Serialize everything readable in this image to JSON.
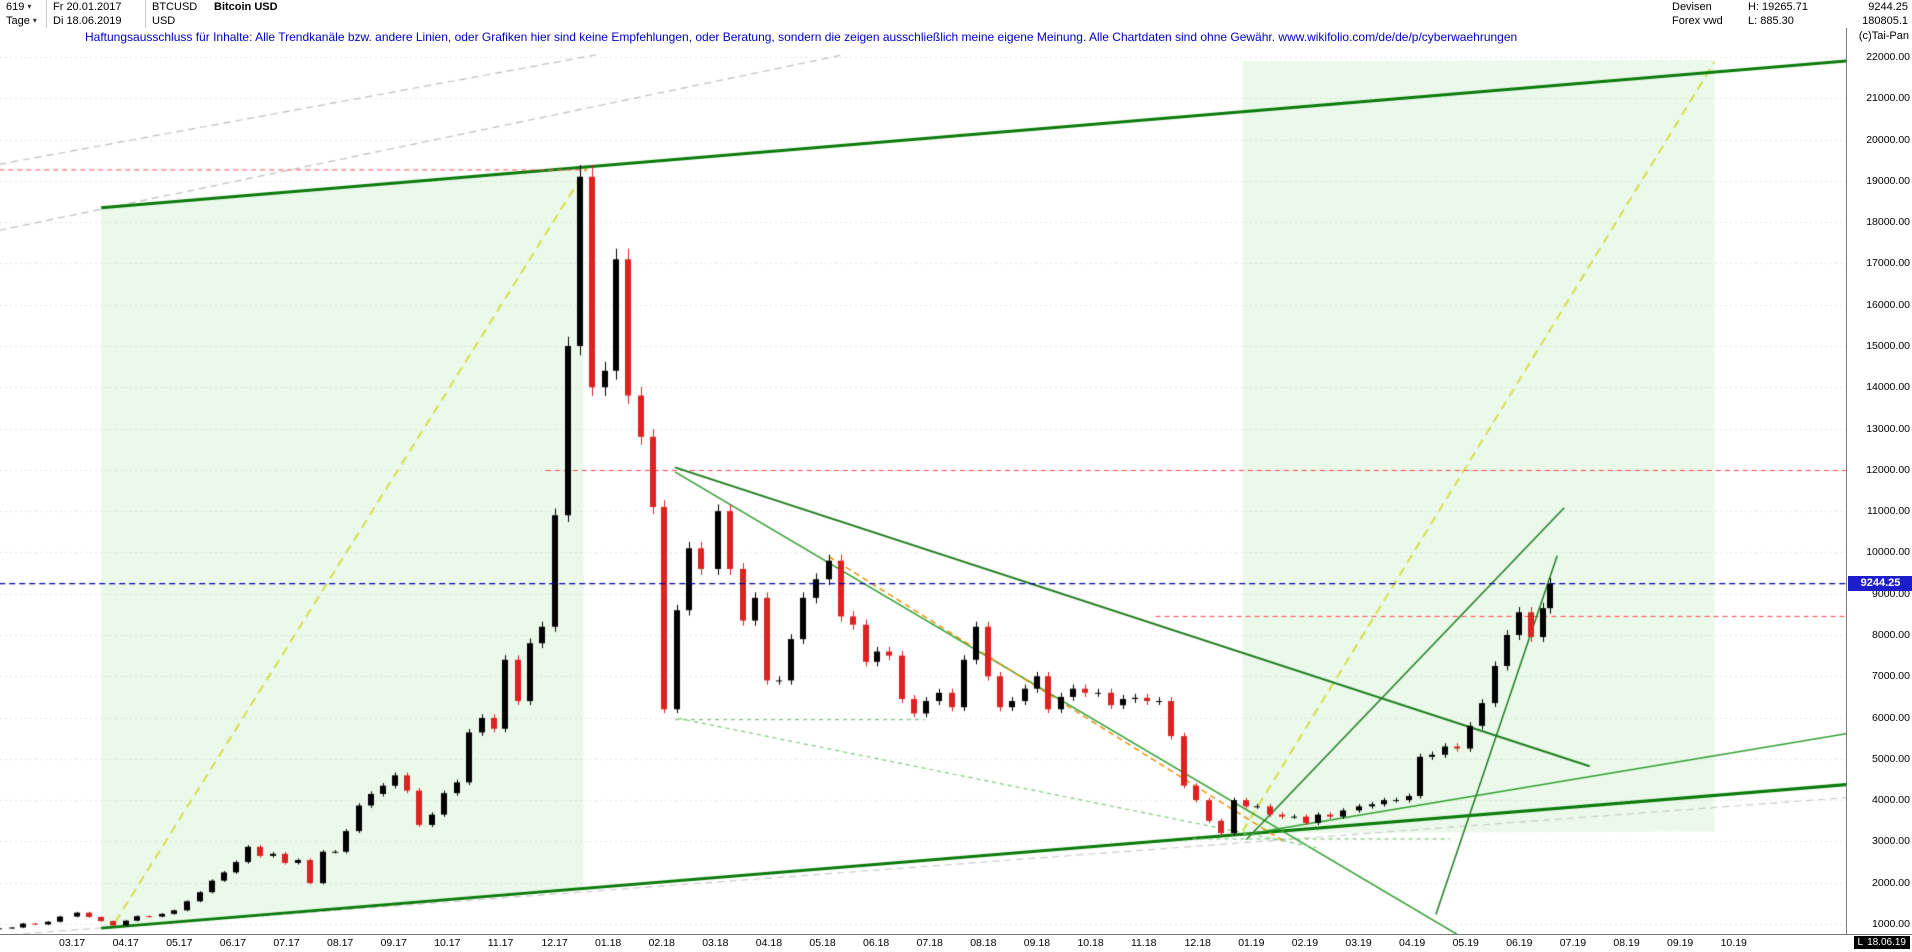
{
  "header": {
    "bars_count": "619",
    "start_date": "Fr 20.01.2017",
    "symbol": "BTCUSD",
    "currency": "USD",
    "instrument": "Bitcoin USD",
    "period": "Tage",
    "end_date": "Di 18.06.2019",
    "category": "Devisen",
    "feed": "Forex vwd",
    "high_label": "H: 19265.71",
    "low_label": "L: 885.30",
    "last_price": "9244.25",
    "volume": "180805.1",
    "copyright": "(c)Tai-Pan"
  },
  "disclaimer": "Haftungsausschluss für Inhalte: Alle Trendkanäle bzw. andere Linien, oder Grafiken hier sind keine Empfehlungen, oder Beratung, sondern die zeigen ausschließlich meine eigene Meinung. Alle Chartdaten sind ohne Gewähr.  www.wikifolio.com/de/de/p/cyberwaehrungen",
  "footer": {
    "low_marker": "L",
    "date_stamp": "18.06.19"
  },
  "price_badge": {
    "text": "9244.25",
    "color": "#1d1dcc"
  },
  "chart_data": {
    "type": "candlestick",
    "title": "Bitcoin USD (BTCUSD), Tage, 20.01.2017 - 18.06.2019",
    "last": 9244.25,
    "high": 19265.71,
    "low": 885.3,
    "ylim": [
      1000,
      22000
    ],
    "axis_min": 1000,
    "axis_max": 22000,
    "grid": {
      "step": 1000,
      "color": "#e8e8e8",
      "dash": [
        2,
        3
      ]
    },
    "colors": {
      "up": "#000000",
      "down": "#dd2222"
    },
    "y_ticks": {
      "values": [
        22000,
        21000,
        20000,
        19000,
        18000,
        17000,
        16000,
        15000,
        14000,
        13000,
        12000,
        11000,
        10000,
        9000,
        8000,
        7000,
        6000,
        5000,
        4000,
        3000,
        2000,
        1000
      ],
      "labels": [
        "22000.00",
        "21000.00",
        "20000.00",
        "19000.00",
        "18000.00",
        "17000.00",
        "16000.00",
        "15000.00",
        "14000.00",
        "13000.00",
        "12000.00",
        "11000.00",
        "10000.00",
        "9000.00",
        "8000.00",
        "7000.00",
        "6000.00",
        "5000.00",
        "4000.00",
        "3000.00",
        "2000.00",
        "1000.00"
      ]
    },
    "x_tick_labels": [
      "03.17",
      "04.17",
      "05.17",
      "06.17",
      "07.17",
      "08.17",
      "09.17",
      "10.17",
      "11.17",
      "12.17",
      "01.18",
      "02.18",
      "03.18",
      "04.18",
      "05.18",
      "06.18",
      "07.18",
      "08.18",
      "09.18",
      "10.18",
      "11.18",
      "12.18",
      "01.19",
      "02.19",
      "03.19",
      "04.19",
      "05.19",
      "06.19",
      "07.19",
      "08.19",
      "09.19",
      "10.19"
    ],
    "candles": {
      "dates": [
        "2017-01-20",
        "2017-01-27",
        "2017-02-03",
        "2017-02-10",
        "2017-02-17",
        "2017-02-24",
        "2017-03-03",
        "2017-03-10",
        "2017-03-17",
        "2017-03-24",
        "2017-03-31",
        "2017-04-07",
        "2017-04-14",
        "2017-04-21",
        "2017-04-28",
        "2017-05-05",
        "2017-05-12",
        "2017-05-19",
        "2017-05-26",
        "2017-06-02",
        "2017-06-09",
        "2017-06-16",
        "2017-06-23",
        "2017-06-30",
        "2017-07-07",
        "2017-07-14",
        "2017-07-21",
        "2017-07-28",
        "2017-08-04",
        "2017-08-11",
        "2017-08-18",
        "2017-08-25",
        "2017-09-01",
        "2017-09-08",
        "2017-09-15",
        "2017-09-22",
        "2017-09-29",
        "2017-10-06",
        "2017-10-13",
        "2017-10-20",
        "2017-10-27",
        "2017-11-03",
        "2017-11-10",
        "2017-11-17",
        "2017-11-24",
        "2017-12-01",
        "2017-12-08",
        "2017-12-15",
        "2017-12-22",
        "2017-12-29",
        "2018-01-05",
        "2018-01-12",
        "2018-01-19",
        "2018-01-26",
        "2018-02-02",
        "2018-02-09",
        "2018-02-16",
        "2018-02-23",
        "2018-03-02",
        "2018-03-09",
        "2018-03-16",
        "2018-03-23",
        "2018-03-30",
        "2018-04-06",
        "2018-04-13",
        "2018-04-20",
        "2018-04-27",
        "2018-05-04",
        "2018-05-11",
        "2018-05-18",
        "2018-05-25",
        "2018-06-01",
        "2018-06-08",
        "2018-06-15",
        "2018-06-22",
        "2018-06-29",
        "2018-07-06",
        "2018-07-13",
        "2018-07-20",
        "2018-07-27",
        "2018-08-03",
        "2018-08-10",
        "2018-08-17",
        "2018-08-24",
        "2018-08-31",
        "2018-09-07",
        "2018-09-14",
        "2018-09-21",
        "2018-09-28",
        "2018-10-05",
        "2018-10-12",
        "2018-10-19",
        "2018-10-26",
        "2018-11-02",
        "2018-11-09",
        "2018-11-16",
        "2018-11-23",
        "2018-11-30",
        "2018-12-07",
        "2018-12-14",
        "2018-12-21",
        "2018-12-28",
        "2019-01-04",
        "2019-01-11",
        "2019-01-18",
        "2019-01-25",
        "2019-02-01",
        "2019-02-08",
        "2019-02-15",
        "2019-02-22",
        "2019-03-01",
        "2019-03-08",
        "2019-03-15",
        "2019-03-22",
        "2019-03-29",
        "2019-04-05",
        "2019-04-12",
        "2019-04-19",
        "2019-04-26",
        "2019-05-03",
        "2019-05-10",
        "2019-05-17",
        "2019-05-24",
        "2019-05-31",
        "2019-06-07",
        "2019-06-14",
        "2019-06-18"
      ],
      "closes": [
        895,
        915,
        1010,
        990,
        1055,
        1180,
        1275,
        1170,
        1070,
        965,
        1080,
        1190,
        1180,
        1245,
        1330,
        1550,
        1770,
        2050,
        2250,
        2500,
        2870,
        2650,
        2700,
        2480,
        2550,
        1990,
        2750,
        2750,
        3250,
        3870,
        4150,
        4350,
        4600,
        4230,
        3400,
        3650,
        4170,
        4430,
        5640,
        5990,
        5730,
        7400,
        6400,
        7800,
        8200,
        10900,
        15000,
        19100,
        14000,
        14400,
        17100,
        13800,
        12800,
        11100,
        6200,
        8600,
        10100,
        9600,
        11000,
        9600,
        8350,
        8900,
        6900,
        6900,
        7900,
        8900,
        9350,
        9800,
        8450,
        8250,
        7350,
        7600,
        7500,
        6450,
        6100,
        6400,
        6600,
        6250,
        7400,
        8200,
        7000,
        6250,
        6400,
        6700,
        7000,
        6200,
        6500,
        6700,
        6600,
        6600,
        6300,
        6450,
        6480,
        6400,
        6400,
        5550,
        4350,
        4000,
        3500,
        3200,
        4000,
        3850,
        3850,
        3650,
        3600,
        3600,
        3450,
        3650,
        3600,
        3750,
        3850,
        3900,
        4000,
        4000,
        4100,
        5050,
        5100,
        5300,
        5250,
        5800,
        6350,
        7250,
        8000,
        8550,
        7950,
        8650,
        9244.25
      ]
    },
    "regions": [
      {
        "name": "green-channel-left",
        "fill": "rgba(150,225,150,0.20)",
        "points": [
          [
            "2017-03-17",
            900
          ],
          [
            "2017-03-17",
            18350
          ],
          [
            "2017-12-17",
            19330
          ],
          [
            "2017-12-17",
            1860
          ]
        ]
      },
      {
        "name": "green-channel-right",
        "fill": "rgba(150,225,150,0.20)",
        "points": [
          [
            "2018-12-26",
            3200
          ],
          [
            "2018-12-26",
            21900
          ],
          [
            "2019-09-20",
            21930
          ],
          [
            "2019-09-20",
            3240
          ]
        ]
      }
    ],
    "overlays": [
      {
        "name": "gray-dashed-upper-1",
        "color": "#bdbdbd",
        "width": 1.2,
        "dash": [
          7,
          5
        ],
        "points": [
          [
            "2017-01-20",
            17800
          ],
          [
            "2018-05-13",
            22060
          ]
        ]
      },
      {
        "name": "gray-dashed-upper-2",
        "color": "#bdbdbd",
        "width": 1.2,
        "dash": [
          7,
          5
        ],
        "points": [
          [
            "2017-01-20",
            19400
          ],
          [
            "2017-12-25",
            22060
          ]
        ]
      },
      {
        "name": "gray-dashed-lower",
        "color": "#cccccc",
        "width": 1.2,
        "dash": [
          7,
          5
        ],
        "points": [
          [
            "2017-01-20",
            720
          ],
          [
            "2019-12-16",
            4100
          ]
        ]
      },
      {
        "name": "yellow-dashed-left",
        "color": "#d4e04a",
        "width": 2,
        "dash": [
          9,
          6
        ],
        "points": [
          [
            "2017-03-25",
            1050
          ],
          [
            "2017-12-19",
            19320
          ]
        ]
      },
      {
        "name": "yellow-dashed-right",
        "color": "#d4e04a",
        "width": 2,
        "dash": [
          9,
          6
        ],
        "points": [
          [
            "2018-12-26",
            3250
          ],
          [
            "2019-09-20",
            21880
          ]
        ]
      },
      {
        "name": "support-trendline-main",
        "color": "#0a7a0a",
        "width": 3,
        "dash": [],
        "points": [
          [
            "2017-03-17",
            900
          ],
          [
            "2019-12-16",
            4420
          ]
        ]
      },
      {
        "name": "resistance-trendline-main",
        "color": "#0a7a0a",
        "width": 3,
        "dash": [],
        "points": [
          [
            "2017-03-17",
            18350
          ],
          [
            "2019-12-16",
            21950
          ]
        ]
      },
      {
        "name": "red-dashed-high-19265",
        "color": "#ff5050",
        "width": 1,
        "dash": [
          5,
          4
        ],
        "points": [
          [
            "2017-01-20",
            19265
          ],
          [
            "2017-12-19",
            19265
          ]
        ]
      },
      {
        "name": "red-dashed-12000",
        "color": "#ff4545",
        "width": 1,
        "dash": [
          5,
          4
        ],
        "points": [
          [
            "2017-11-26",
            11985
          ],
          [
            "2019-12-16",
            11985
          ]
        ]
      },
      {
        "name": "red-dashed-8450",
        "color": "#ff4545",
        "width": 1,
        "dash": [
          5,
          4
        ],
        "points": [
          [
            "2018-11-07",
            8450
          ],
          [
            "2019-12-16",
            8450
          ]
        ]
      },
      {
        "name": "descending-resistance-green",
        "color": "#1e7d1e",
        "width": 2,
        "dash": [],
        "points": [
          [
            "2018-02-08",
            12060
          ],
          [
            "2019-07-10",
            4820
          ]
        ]
      },
      {
        "name": "descending-steep-green",
        "color": "#2f9e2f",
        "width": 1.5,
        "dash": [],
        "points": [
          [
            "2018-02-08",
            11950
          ],
          [
            "2019-04-28",
            700
          ]
        ]
      },
      {
        "name": "orange-dashed-descending",
        "color": "#e8920a",
        "width": 1.5,
        "dash": [
          6,
          4
        ],
        "points": [
          [
            "2018-05-04",
            9900
          ],
          [
            "2019-01-19",
            3000
          ]
        ]
      },
      {
        "name": "lightgreen-dashed-descending",
        "color": "#7cc97c",
        "width": 1.2,
        "dash": [
          4,
          4
        ],
        "points": [
          [
            "2018-02-10",
            5980
          ],
          [
            "2019-02-07",
            2850
          ]
        ]
      },
      {
        "name": "lightgreen-dashed-6000",
        "color": "#7cc97c",
        "width": 1.2,
        "dash": [
          4,
          4
        ],
        "points": [
          [
            "2018-02-08",
            5950
          ],
          [
            "2018-06-28",
            5950
          ]
        ]
      },
      {
        "name": "lightgreen-dashed-3060",
        "color": "#7cc97c",
        "width": 1.2,
        "dash": [
          4,
          4
        ],
        "points": [
          [
            "2018-11-28",
            3060
          ],
          [
            "2019-04-22",
            3060
          ]
        ]
      },
      {
        "name": "rising-support-fan",
        "color": "#2f9e2f",
        "width": 1.5,
        "dash": [],
        "points": [
          [
            "2018-12-26",
            3160
          ],
          [
            "2019-12-16",
            5700
          ]
        ]
      },
      {
        "name": "rising-steep-1",
        "color": "#1e7d1e",
        "width": 1.5,
        "dash": [],
        "points": [
          [
            "2018-12-28",
            3040
          ],
          [
            "2019-06-26",
            11080
          ]
        ]
      },
      {
        "name": "rising-steep-2",
        "color": "#1e7d1e",
        "width": 1.5,
        "dash": [],
        "points": [
          [
            "2019-04-14",
            1230
          ],
          [
            "2019-06-22",
            9920
          ]
        ]
      },
      {
        "name": "current-price-dashed",
        "color": "#0000aa",
        "width": 1.2,
        "dash": [
          6,
          4
        ],
        "layer": "front",
        "points": [
          [
            "2017-01-20",
            9244.25
          ],
          [
            "2019-12-16",
            9244.25
          ]
        ]
      }
    ]
  }
}
